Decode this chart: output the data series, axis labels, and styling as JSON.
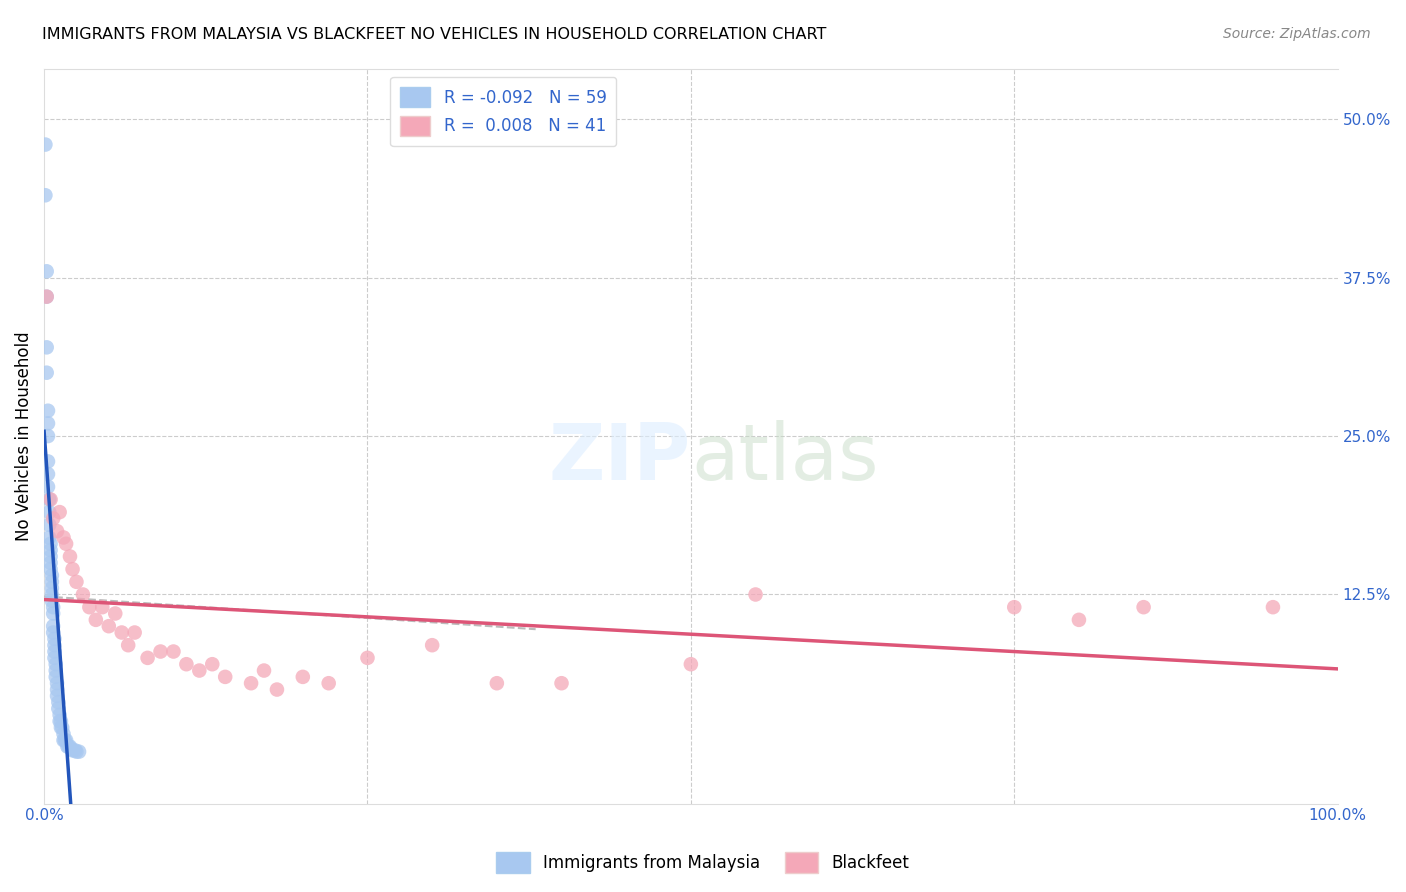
{
  "title": "IMMIGRANTS FROM MALAYSIA VS BLACKFEET NO VEHICLES IN HOUSEHOLD CORRELATION CHART",
  "source": "Source: ZipAtlas.com",
  "ylabel": "No Vehicles in Household",
  "legend_bottom": [
    "Immigrants from Malaysia",
    "Blackfeet"
  ],
  "r_malaysia": -0.092,
  "n_malaysia": 59,
  "r_blackfeet": 0.008,
  "n_blackfeet": 41,
  "xlim": [
    0.0,
    1.0
  ],
  "ylim": [
    -0.04,
    0.54
  ],
  "color_malaysia": "#a8c8f0",
  "color_blackfeet": "#f4a8b8",
  "trendline_malaysia": "#2255bb",
  "trendline_blackfeet": "#dd5577",
  "trendline_dashed_color": "#bbbbbb",
  "watermark_color": "#ddeeff",
  "malaysia_x": [
    0.001,
    0.001,
    0.002,
    0.002,
    0.002,
    0.002,
    0.003,
    0.003,
    0.003,
    0.003,
    0.003,
    0.003,
    0.004,
    0.004,
    0.004,
    0.004,
    0.005,
    0.005,
    0.005,
    0.005,
    0.005,
    0.006,
    0.006,
    0.006,
    0.006,
    0.006,
    0.007,
    0.007,
    0.007,
    0.007,
    0.008,
    0.008,
    0.008,
    0.008,
    0.009,
    0.009,
    0.009,
    0.01,
    0.01,
    0.01,
    0.011,
    0.011,
    0.012,
    0.012,
    0.013,
    0.013,
    0.014,
    0.015,
    0.015,
    0.016,
    0.017,
    0.018,
    0.019,
    0.02,
    0.021,
    0.022,
    0.024,
    0.025,
    0.027
  ],
  "malaysia_y": [
    0.48,
    0.44,
    0.38,
    0.36,
    0.32,
    0.3,
    0.27,
    0.26,
    0.25,
    0.23,
    0.22,
    0.21,
    0.2,
    0.19,
    0.18,
    0.17,
    0.165,
    0.16,
    0.155,
    0.15,
    0.145,
    0.14,
    0.135,
    0.13,
    0.125,
    0.12,
    0.115,
    0.11,
    0.1,
    0.095,
    0.09,
    0.085,
    0.08,
    0.075,
    0.07,
    0.065,
    0.06,
    0.055,
    0.05,
    0.045,
    0.04,
    0.035,
    0.03,
    0.025,
    0.025,
    0.02,
    0.02,
    0.015,
    0.01,
    0.01,
    0.01,
    0.005,
    0.005,
    0.005,
    0.003,
    0.002,
    0.002,
    0.001,
    0.001
  ],
  "blackfeet_x": [
    0.002,
    0.005,
    0.007,
    0.01,
    0.012,
    0.015,
    0.017,
    0.02,
    0.022,
    0.025,
    0.03,
    0.035,
    0.04,
    0.045,
    0.05,
    0.055,
    0.06,
    0.065,
    0.07,
    0.08,
    0.09,
    0.1,
    0.11,
    0.12,
    0.13,
    0.14,
    0.16,
    0.17,
    0.18,
    0.2,
    0.22,
    0.25,
    0.3,
    0.35,
    0.4,
    0.5,
    0.55,
    0.75,
    0.8,
    0.85,
    0.95
  ],
  "blackfeet_y": [
    0.36,
    0.2,
    0.185,
    0.175,
    0.19,
    0.17,
    0.165,
    0.155,
    0.145,
    0.135,
    0.125,
    0.115,
    0.105,
    0.115,
    0.1,
    0.11,
    0.095,
    0.085,
    0.095,
    0.075,
    0.08,
    0.08,
    0.07,
    0.065,
    0.07,
    0.06,
    0.055,
    0.065,
    0.05,
    0.06,
    0.055,
    0.075,
    0.085,
    0.055,
    0.055,
    0.07,
    0.125,
    0.115,
    0.105,
    0.115,
    0.115
  ]
}
